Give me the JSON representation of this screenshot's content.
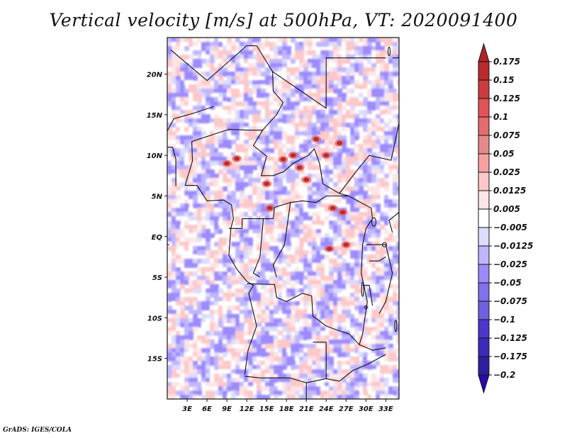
{
  "title": "Vertical velocity [m/s] at 500hPa, VT: 2020091400",
  "footer": "GrADS: IGES/COLA",
  "chart_data": {
    "type": "heatmap",
    "title": "Vertical velocity [m/s] at 500hPa, VT: 2020091400",
    "variable": "Vertical velocity",
    "units": "m/s",
    "level": "500hPa",
    "valid_time": "2020091400",
    "projection": "lat-lon map with country boundaries (Central Africa)",
    "xlabel": "",
    "ylabel": "",
    "xlim": [
      0,
      35
    ],
    "ylim": [
      -20,
      24.5
    ],
    "x_ticks": [
      3,
      6,
      9,
      12,
      15,
      18,
      21,
      24,
      27,
      30,
      33
    ],
    "x_tick_labels": [
      "3E",
      "6E",
      "9E",
      "12E",
      "15E",
      "18E",
      "21E",
      "24E",
      "27E",
      "30E",
      "33E"
    ],
    "y_ticks": [
      20,
      15,
      10,
      5,
      0,
      -5,
      -10,
      -15
    ],
    "y_tick_labels": [
      "20N",
      "15N",
      "10N",
      "5N",
      "EQ",
      "5S",
      "10S",
      "15S"
    ],
    "colorbar": {
      "placement": "right",
      "orientation": "vertical",
      "extend": "both",
      "levels": [
        0.175,
        0.15,
        0.125,
        0.1,
        0.075,
        0.05,
        0.025,
        0.0125,
        0.005,
        -0.005,
        -0.0125,
        -0.025,
        -0.05,
        -0.075,
        -0.1,
        -0.125,
        -0.175,
        -0.2
      ],
      "labels": [
        "0.175",
        "0.15",
        "0.125",
        "0.1",
        "0.075",
        "0.05",
        "0.025",
        "0.0125",
        "0.005",
        "−0.005",
        "−0.0125",
        "−0.025",
        "−0.05",
        "−0.075",
        "−0.1",
        "−0.125",
        "−0.175",
        "−0.2"
      ],
      "colors_top_to_bottom": [
        "#b02426",
        "#bb2a2c",
        "#cc3c3f",
        "#e55255",
        "#e56b6e",
        "#e48a8d",
        "#f7a1a3",
        "#fcc8c9",
        "#fde4e5",
        "#ffffff",
        "#dcdcfe",
        "#c0b6fd",
        "#9d8afc",
        "#8270ee",
        "#7060dd",
        "#4a38cc",
        "#3c2ab8",
        "#2e1f9e",
        "#2a0aa8"
      ]
    },
    "features": [
      "strong upward motion (dark red, >0.15 m/s) cells near 8-11N, 10-25E and 0-5N, 20-28E",
      "weak mixed ascent/descent (light red / light blue) over ocean and southern Africa"
    ]
  }
}
